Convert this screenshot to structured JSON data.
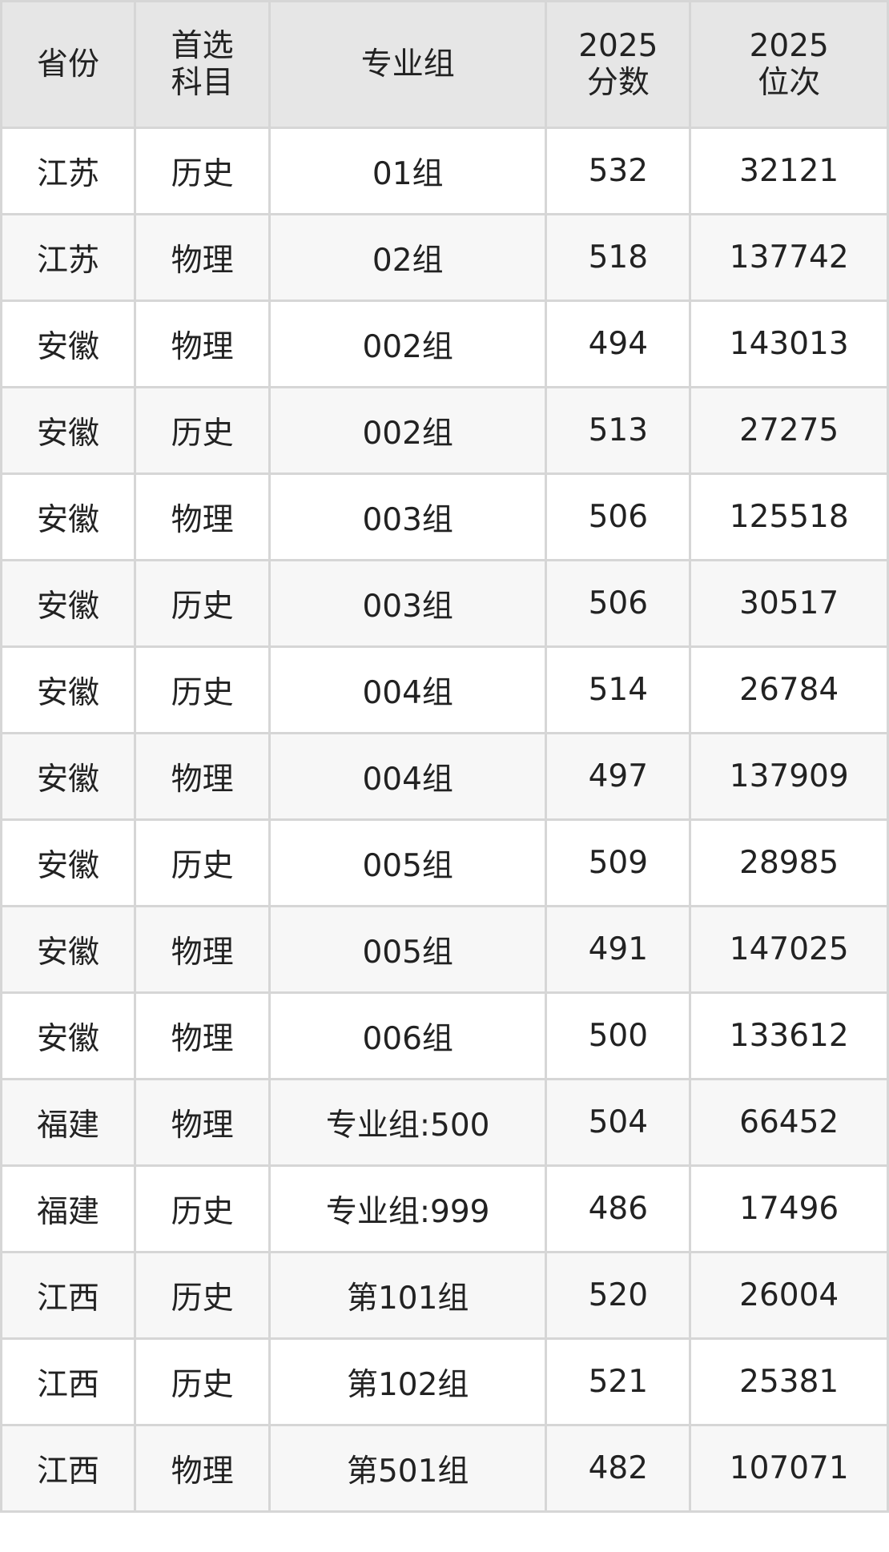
{
  "table": {
    "headers": [
      {
        "line1": "省份",
        "line2": ""
      },
      {
        "line1": "首选",
        "line2": "科目"
      },
      {
        "line1": "专业组",
        "line2": ""
      },
      {
        "line1": "2025",
        "line2": "分数"
      },
      {
        "line1": "2025",
        "line2": "位次"
      }
    ],
    "rows": [
      [
        "江苏",
        "历史",
        "01组",
        "532",
        "32121"
      ],
      [
        "江苏",
        "物理",
        "02组",
        "518",
        "137742"
      ],
      [
        "安徽",
        "物理",
        "002组",
        "494",
        "143013"
      ],
      [
        "安徽",
        "历史",
        "002组",
        "513",
        "27275"
      ],
      [
        "安徽",
        "物理",
        "003组",
        "506",
        "125518"
      ],
      [
        "安徽",
        "历史",
        "003组",
        "506",
        "30517"
      ],
      [
        "安徽",
        "历史",
        "004组",
        "514",
        "26784"
      ],
      [
        "安徽",
        "物理",
        "004组",
        "497",
        "137909"
      ],
      [
        "安徽",
        "历史",
        "005组",
        "509",
        "28985"
      ],
      [
        "安徽",
        "物理",
        "005组",
        "491",
        "147025"
      ],
      [
        "安徽",
        "物理",
        "006组",
        "500",
        "133612"
      ],
      [
        "福建",
        "物理",
        "专业组:500",
        "504",
        "66452"
      ],
      [
        "福建",
        "历史",
        "专业组:999",
        "486",
        "17496"
      ],
      [
        "江西",
        "历史",
        "第101组",
        "520",
        "26004"
      ],
      [
        "江西",
        "历史",
        "第102组",
        "521",
        "25381"
      ],
      [
        "江西",
        "物理",
        "第501组",
        "482",
        "107071"
      ]
    ]
  },
  "colors": {
    "header_bg": "#e6e6e6",
    "alt_row_bg": "#f7f7f7",
    "border": "#d6d6d6",
    "text": "#222222"
  }
}
